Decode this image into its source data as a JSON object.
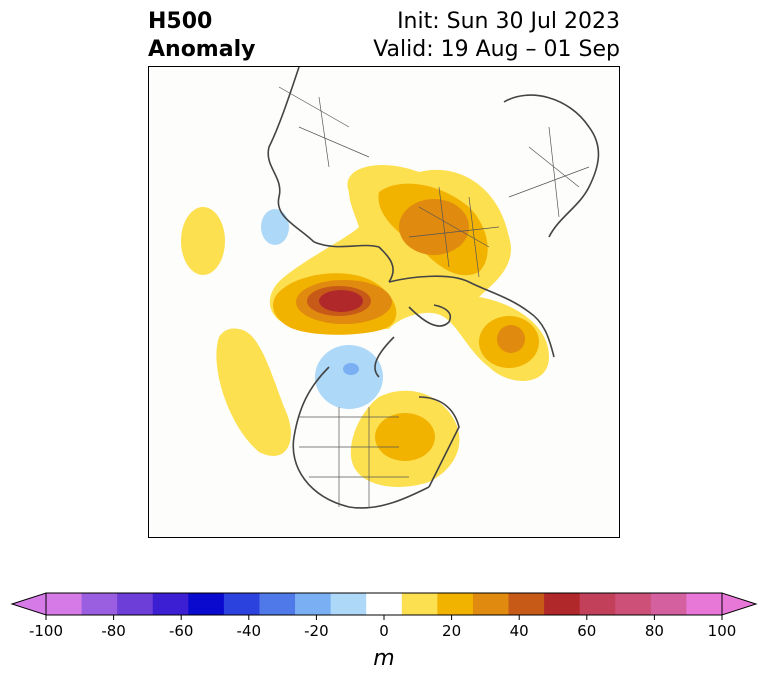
{
  "header": {
    "variable_line1": "H500",
    "variable_line2": "Anomaly",
    "init_line": "Init: Sun 30 Jul 2023",
    "valid_line": "Valid: 19 Aug – 01 Sep"
  },
  "colorbar": {
    "units": "m",
    "ticks": [
      "-100",
      "-80",
      "-60",
      "-40",
      "-20",
      "0",
      "20",
      "40",
      "60",
      "80",
      "100"
    ],
    "colors": [
      "#d67ae8",
      "#9a5ee0",
      "#6d3ed8",
      "#3c1fd2",
      "#0a0acf",
      "#2b42df",
      "#4f78e8",
      "#7ab0f3",
      "#add8f8",
      "#ffffff",
      "#fde050",
      "#f2b200",
      "#e08a10",
      "#c85a18",
      "#b0282a",
      "#c2405a",
      "#cc5078",
      "#d460a0",
      "#e878d8"
    ],
    "extend_low_color": "#d67ae8",
    "extend_high_color": "#e878d8"
  }
}
